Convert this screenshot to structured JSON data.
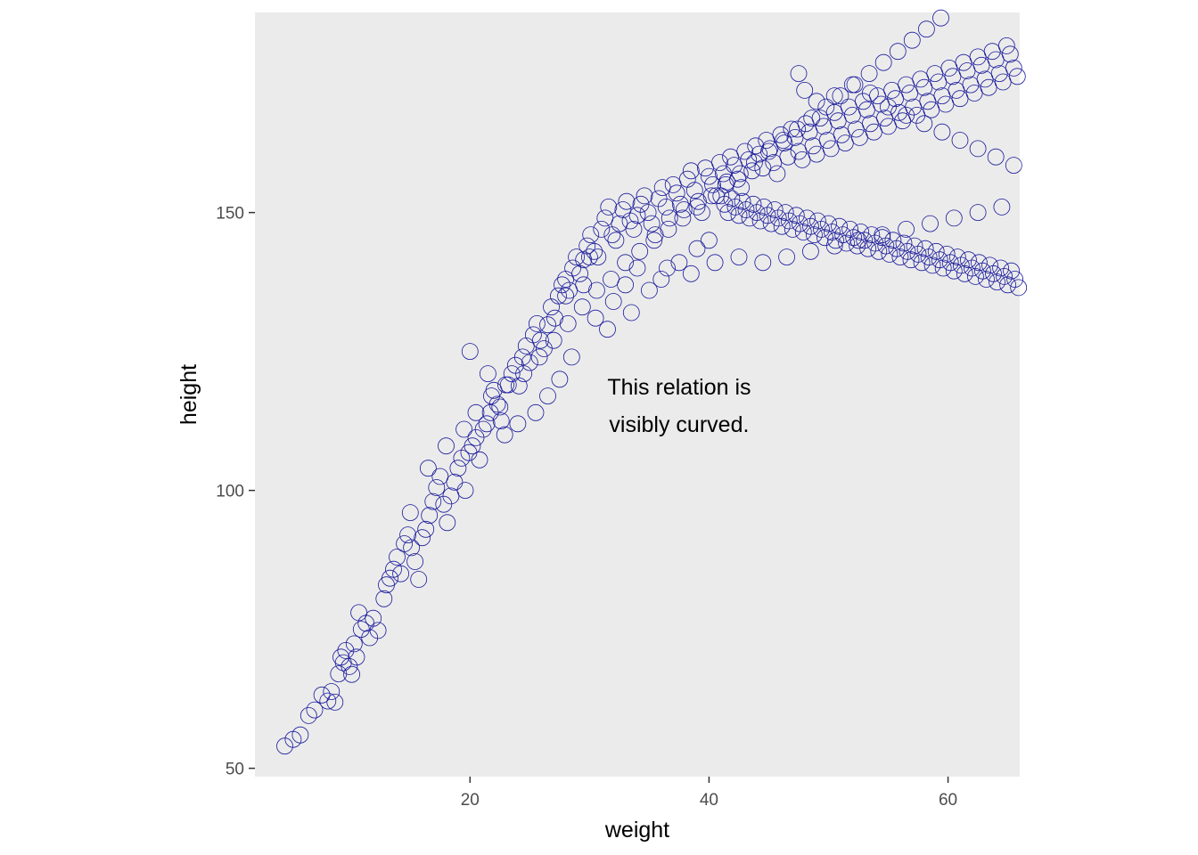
{
  "chart_data": {
    "type": "scatter",
    "title": "",
    "xlabel": "weight",
    "ylabel": "height",
    "xlim": [
      2.0,
      66.0
    ],
    "ylim": [
      48.5,
      186.0
    ],
    "x_ticks": [
      20,
      40,
      60
    ],
    "y_ticks": [
      50,
      100,
      150
    ],
    "grid": false,
    "background": "#ebebeb",
    "point_color": "#1a1a9c",
    "annotation": {
      "lines": [
        "This relation is",
        "visibly curved."
      ],
      "x": 37.5,
      "y": 115
    },
    "points": [
      [
        4.5,
        54.0
      ],
      [
        5.2,
        55.2
      ],
      [
        5.8,
        56.0
      ],
      [
        6.5,
        59.5
      ],
      [
        7.0,
        60.5
      ],
      [
        7.6,
        63.2
      ],
      [
        8.1,
        62.1
      ],
      [
        8.4,
        63.8
      ],
      [
        8.7,
        61.9
      ],
      [
        9.0,
        67.0
      ],
      [
        9.2,
        70.0
      ],
      [
        9.4,
        69.0
      ],
      [
        9.6,
        71.2
      ],
      [
        9.9,
        68.3
      ],
      [
        10.1,
        66.9
      ],
      [
        10.3,
        72.4
      ],
      [
        10.5,
        70.0
      ],
      [
        10.7,
        78.0
      ],
      [
        10.9,
        75.0
      ],
      [
        11.3,
        76.1
      ],
      [
        11.6,
        73.5
      ],
      [
        11.9,
        77.0
      ],
      [
        12.3,
        74.8
      ],
      [
        12.8,
        80.5
      ],
      [
        13.0,
        83.0
      ],
      [
        13.3,
        84.2
      ],
      [
        13.6,
        85.8
      ],
      [
        13.9,
        88.0
      ],
      [
        14.2,
        85.0
      ],
      [
        14.5,
        90.4
      ],
      [
        14.8,
        92.0
      ],
      [
        15.1,
        89.7
      ],
      [
        15.4,
        87.2
      ],
      [
        15.7,
        84.0
      ],
      [
        16.0,
        91.5
      ],
      [
        16.3,
        93.0
      ],
      [
        16.6,
        95.5
      ],
      [
        16.9,
        98.0
      ],
      [
        17.2,
        100.5
      ],
      [
        17.5,
        102.5
      ],
      [
        17.8,
        97.5
      ],
      [
        18.1,
        94.2
      ],
      [
        18.4,
        99.0
      ],
      [
        18.7,
        101.5
      ],
      [
        19.0,
        104.0
      ],
      [
        19.3,
        105.8
      ],
      [
        19.6,
        100.0
      ],
      [
        19.9,
        106.8
      ],
      [
        20.2,
        108.0
      ],
      [
        20.5,
        109.5
      ],
      [
        20.8,
        105.5
      ],
      [
        21.1,
        111.0
      ],
      [
        21.4,
        112.0
      ],
      [
        21.7,
        114.0
      ],
      [
        22.0,
        118.0
      ],
      [
        22.3,
        115.5
      ],
      [
        22.6,
        112.5
      ],
      [
        22.9,
        110.0
      ],
      [
        23.2,
        119.0
      ],
      [
        23.5,
        121.0
      ],
      [
        23.8,
        122.5
      ],
      [
        24.1,
        118.8
      ],
      [
        24.4,
        124.0
      ],
      [
        24.7,
        126.0
      ],
      [
        25.0,
        123.0
      ],
      [
        25.3,
        128.0
      ],
      [
        25.6,
        130.0
      ],
      [
        25.9,
        127.0
      ],
      [
        26.2,
        125.5
      ],
      [
        26.5,
        129.8
      ],
      [
        26.8,
        133.0
      ],
      [
        27.1,
        131.0
      ],
      [
        27.4,
        135.0
      ],
      [
        27.7,
        137.0
      ],
      [
        28.0,
        138.0
      ],
      [
        28.3,
        136.0
      ],
      [
        28.6,
        140.0
      ],
      [
        28.9,
        142.0
      ],
      [
        29.2,
        139.0
      ],
      [
        29.5,
        141.5
      ],
      [
        29.8,
        144.0
      ],
      [
        30.1,
        146.0
      ],
      [
        30.4,
        143.0
      ],
      [
        30.7,
        142.0
      ],
      [
        31.0,
        147.0
      ],
      [
        31.3,
        149.0
      ],
      [
        31.6,
        151.0
      ],
      [
        31.9,
        146.0
      ],
      [
        32.2,
        145.0
      ],
      [
        32.5,
        148.0
      ],
      [
        32.8,
        150.5
      ],
      [
        33.1,
        152.0
      ],
      [
        33.4,
        148.5
      ],
      [
        33.7,
        147.0
      ],
      [
        34.0,
        149.5
      ],
      [
        34.3,
        151.5
      ],
      [
        34.6,
        153.0
      ],
      [
        34.9,
        150.0
      ],
      [
        35.2,
        148.0
      ],
      [
        35.5,
        146.0
      ],
      [
        35.8,
        152.5
      ],
      [
        36.1,
        154.5
      ],
      [
        36.4,
        151.0
      ],
      [
        36.7,
        149.0
      ],
      [
        37.0,
        155.0
      ],
      [
        37.3,
        153.5
      ],
      [
        37.6,
        151.5
      ],
      [
        37.9,
        150.5
      ],
      [
        38.2,
        156.0
      ],
      [
        38.5,
        157.5
      ],
      [
        38.8,
        154.0
      ],
      [
        39.1,
        152.0
      ],
      [
        39.4,
        150.0
      ],
      [
        39.7,
        158.0
      ],
      [
        40.0,
        156.5
      ],
      [
        40.3,
        155.0
      ],
      [
        40.6,
        153.0
      ],
      [
        40.9,
        159.0
      ],
      [
        41.2,
        157.0
      ],
      [
        41.5,
        155.5
      ],
      [
        41.8,
        160.0
      ],
      [
        42.1,
        158.5
      ],
      [
        42.4,
        156.0
      ],
      [
        42.7,
        154.5
      ],
      [
        43.0,
        161.0
      ],
      [
        43.3,
        159.5
      ],
      [
        43.6,
        157.5
      ],
      [
        43.9,
        162.0
      ],
      [
        44.2,
        160.5
      ],
      [
        44.5,
        158.0
      ],
      [
        44.8,
        163.0
      ],
      [
        45.1,
        161.5
      ],
      [
        45.4,
        159.0
      ],
      [
        45.7,
        157.0
      ],
      [
        46.0,
        164.0
      ],
      [
        46.3,
        162.5
      ],
      [
        46.6,
        160.0
      ],
      [
        46.9,
        165.0
      ],
      [
        47.2,
        163.5
      ],
      [
        47.5,
        161.0
      ],
      [
        47.8,
        159.5
      ],
      [
        48.1,
        166.0
      ],
      [
        48.4,
        164.5
      ],
      [
        48.7,
        162.0
      ],
      [
        49.0,
        160.5
      ],
      [
        49.3,
        167.0
      ],
      [
        49.6,
        165.5
      ],
      [
        49.9,
        163.0
      ],
      [
        50.2,
        161.5
      ],
      [
        50.5,
        168.0
      ],
      [
        50.8,
        166.5
      ],
      [
        51.1,
        164.0
      ],
      [
        51.4,
        162.5
      ],
      [
        51.7,
        169.0
      ],
      [
        52.0,
        167.5
      ],
      [
        52.3,
        165.0
      ],
      [
        52.6,
        163.5
      ],
      [
        52.9,
        170.0
      ],
      [
        53.2,
        168.5
      ],
      [
        53.5,
        166.0
      ],
      [
        53.8,
        164.5
      ],
      [
        54.1,
        171.0
      ],
      [
        54.4,
        169.5
      ],
      [
        54.7,
        167.0
      ],
      [
        55.0,
        165.5
      ],
      [
        55.3,
        172.0
      ],
      [
        55.6,
        170.5
      ],
      [
        55.9,
        168.0
      ],
      [
        56.2,
        166.5
      ],
      [
        56.5,
        173.0
      ],
      [
        56.8,
        171.5
      ],
      [
        57.1,
        169.0
      ],
      [
        57.4,
        167.5
      ],
      [
        57.7,
        174.0
      ],
      [
        58.0,
        172.5
      ],
      [
        58.3,
        170.0
      ],
      [
        58.6,
        168.5
      ],
      [
        58.9,
        175.0
      ],
      [
        59.2,
        173.5
      ],
      [
        59.5,
        171.0
      ],
      [
        59.8,
        169.5
      ],
      [
        60.1,
        176.0
      ],
      [
        60.4,
        174.5
      ],
      [
        60.7,
        172.0
      ],
      [
        61.0,
        170.5
      ],
      [
        61.3,
        177.0
      ],
      [
        61.6,
        175.5
      ],
      [
        61.9,
        173.0
      ],
      [
        62.2,
        171.5
      ],
      [
        62.5,
        178.0
      ],
      [
        62.8,
        176.5
      ],
      [
        63.1,
        174.0
      ],
      [
        63.4,
        172.5
      ],
      [
        63.7,
        179.0
      ],
      [
        64.0,
        177.5
      ],
      [
        64.3,
        175.0
      ],
      [
        64.6,
        173.5
      ],
      [
        64.9,
        180.0
      ],
      [
        65.2,
        178.5
      ],
      [
        65.5,
        176.0
      ],
      [
        65.8,
        174.5
      ],
      [
        41.0,
        153.0
      ],
      [
        41.3,
        151.5
      ],
      [
        41.6,
        150.0
      ],
      [
        41.9,
        152.5
      ],
      [
        42.2,
        151.0
      ],
      [
        42.5,
        149.5
      ],
      [
        42.8,
        152.0
      ],
      [
        43.1,
        150.5
      ],
      [
        43.4,
        149.0
      ],
      [
        43.7,
        151.5
      ],
      [
        44.0,
        150.0
      ],
      [
        44.3,
        148.5
      ],
      [
        44.6,
        151.0
      ],
      [
        44.9,
        149.5
      ],
      [
        45.2,
        148.0
      ],
      [
        45.5,
        150.5
      ],
      [
        45.8,
        149.0
      ],
      [
        46.1,
        147.5
      ],
      [
        46.4,
        150.0
      ],
      [
        46.7,
        148.5
      ],
      [
        47.0,
        147.0
      ],
      [
        47.3,
        149.5
      ],
      [
        47.6,
        148.0
      ],
      [
        47.9,
        146.5
      ],
      [
        48.2,
        149.0
      ],
      [
        48.5,
        147.5
      ],
      [
        48.8,
        146.0
      ],
      [
        49.1,
        148.5
      ],
      [
        49.4,
        147.0
      ],
      [
        49.7,
        145.5
      ],
      [
        50.0,
        148.0
      ],
      [
        50.3,
        146.5
      ],
      [
        50.6,
        145.0
      ],
      [
        50.9,
        147.5
      ],
      [
        51.2,
        146.0
      ],
      [
        51.5,
        144.5
      ],
      [
        51.8,
        147.0
      ],
      [
        52.1,
        145.5
      ],
      [
        52.4,
        144.0
      ],
      [
        52.7,
        146.5
      ],
      [
        53.0,
        145.0
      ],
      [
        53.3,
        143.5
      ],
      [
        53.6,
        146.0
      ],
      [
        53.9,
        144.5
      ],
      [
        54.2,
        143.0
      ],
      [
        54.5,
        145.5
      ],
      [
        54.8,
        144.0
      ],
      [
        55.1,
        142.5
      ],
      [
        55.4,
        145.0
      ],
      [
        55.7,
        143.5
      ],
      [
        56.0,
        142.0
      ],
      [
        56.3,
        144.5
      ],
      [
        56.6,
        143.0
      ],
      [
        56.9,
        141.5
      ],
      [
        57.2,
        144.0
      ],
      [
        57.5,
        142.5
      ],
      [
        57.8,
        141.0
      ],
      [
        58.1,
        143.5
      ],
      [
        58.4,
        142.0
      ],
      [
        58.7,
        140.5
      ],
      [
        59.0,
        143.0
      ],
      [
        59.3,
        141.5
      ],
      [
        59.6,
        140.0
      ],
      [
        59.9,
        142.5
      ],
      [
        60.2,
        141.0
      ],
      [
        60.5,
        139.5
      ],
      [
        60.8,
        142.0
      ],
      [
        61.1,
        140.5
      ],
      [
        61.4,
        139.0
      ],
      [
        61.7,
        141.5
      ],
      [
        62.0,
        140.0
      ],
      [
        62.3,
        138.5
      ],
      [
        62.6,
        141.0
      ],
      [
        62.9,
        139.5
      ],
      [
        63.2,
        138.0
      ],
      [
        63.5,
        140.5
      ],
      [
        63.8,
        139.0
      ],
      [
        64.1,
        137.5
      ],
      [
        64.4,
        140.0
      ],
      [
        64.7,
        138.5
      ],
      [
        65.0,
        137.0
      ],
      [
        65.3,
        139.5
      ],
      [
        65.6,
        138.0
      ],
      [
        65.9,
        136.5
      ],
      [
        47.5,
        175.0
      ],
      [
        48.0,
        172.0
      ],
      [
        49.0,
        170.0
      ],
      [
        50.5,
        171.0
      ],
      [
        52.0,
        173.0
      ],
      [
        53.5,
        171.5
      ],
      [
        55.0,
        169.0
      ],
      [
        56.5,
        167.5
      ],
      [
        58.0,
        166.0
      ],
      [
        59.5,
        164.5
      ],
      [
        61.0,
        163.0
      ],
      [
        62.5,
        161.5
      ],
      [
        64.0,
        160.0
      ],
      [
        65.5,
        158.5
      ],
      [
        30.0,
        142.0
      ],
      [
        29.5,
        137.0
      ],
      [
        31.5,
        129.0
      ],
      [
        28.0,
        135.0
      ],
      [
        33.0,
        137.0
      ],
      [
        34.0,
        140.0
      ],
      [
        36.5,
        140.0
      ],
      [
        38.5,
        139.0
      ],
      [
        40.5,
        141.0
      ],
      [
        42.5,
        142.0
      ],
      [
        44.5,
        141.0
      ],
      [
        46.5,
        142.0
      ],
      [
        48.5,
        143.0
      ],
      [
        50.5,
        144.0
      ],
      [
        52.5,
        145.0
      ],
      [
        54.5,
        146.0
      ],
      [
        56.5,
        147.0
      ],
      [
        58.5,
        148.0
      ],
      [
        60.5,
        149.0
      ],
      [
        62.5,
        150.0
      ],
      [
        64.5,
        151.0
      ],
      [
        20.0,
        125.0
      ],
      [
        21.5,
        121.0
      ],
      [
        22.5,
        115.0
      ],
      [
        24.0,
        112.0
      ],
      [
        25.5,
        114.0
      ],
      [
        26.5,
        117.0
      ],
      [
        27.5,
        120.0
      ],
      [
        28.5,
        124.0
      ],
      [
        30.5,
        131.0
      ],
      [
        32.0,
        134.0
      ],
      [
        33.5,
        132.0
      ],
      [
        35.0,
        136.0
      ],
      [
        36.0,
        138.0
      ],
      [
        37.5,
        141.0
      ],
      [
        39.0,
        143.5
      ],
      [
        40.0,
        145.0
      ],
      [
        15.0,
        96.0
      ],
      [
        16.5,
        104.0
      ],
      [
        18.0,
        108.0
      ],
      [
        19.5,
        111.0
      ],
      [
        20.5,
        114.0
      ],
      [
        21.8,
        117.0
      ],
      [
        23.0,
        119.0
      ],
      [
        24.5,
        121.0
      ],
      [
        25.8,
        124.0
      ],
      [
        27.0,
        127.0
      ],
      [
        28.2,
        130.0
      ],
      [
        29.4,
        133.0
      ],
      [
        30.6,
        136.0
      ],
      [
        31.8,
        138.0
      ],
      [
        33.0,
        141.0
      ],
      [
        34.2,
        143.0
      ],
      [
        35.4,
        145.0
      ],
      [
        36.6,
        147.0
      ],
      [
        37.8,
        149.0
      ],
      [
        39.0,
        151.0
      ],
      [
        40.2,
        153.0
      ],
      [
        41.4,
        155.0
      ],
      [
        42.6,
        157.0
      ],
      [
        43.8,
        159.0
      ],
      [
        45.0,
        161.0
      ],
      [
        46.2,
        163.0
      ],
      [
        47.4,
        165.0
      ],
      [
        48.6,
        167.0
      ],
      [
        49.8,
        169.0
      ],
      [
        51.0,
        171.0
      ],
      [
        52.2,
        173.0
      ],
      [
        53.4,
        175.0
      ],
      [
        54.6,
        177.0
      ],
      [
        55.8,
        179.0
      ],
      [
        57.0,
        181.0
      ],
      [
        58.2,
        183.0
      ],
      [
        59.4,
        185.0
      ]
    ]
  }
}
